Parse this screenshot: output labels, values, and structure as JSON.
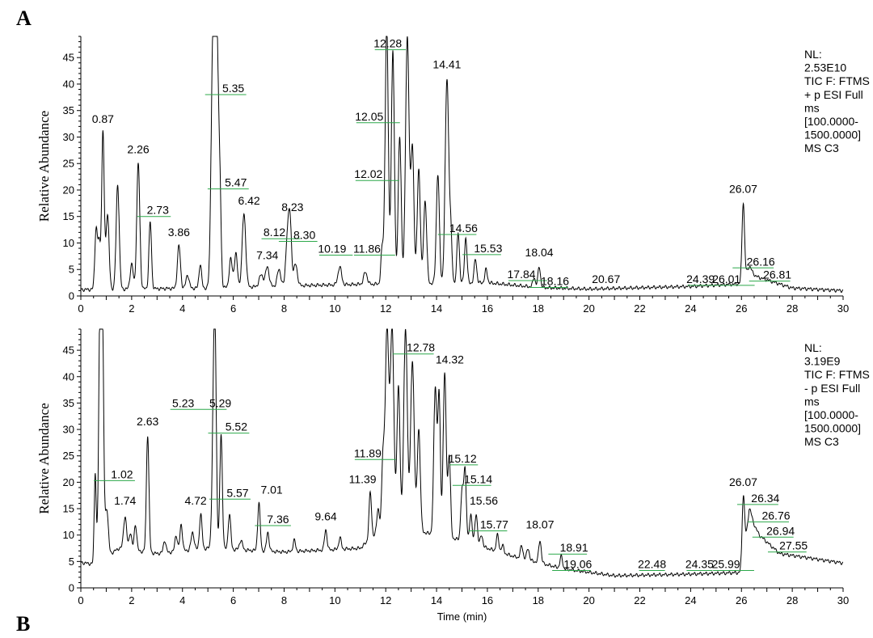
{
  "panel_labels": [
    "A",
    "B"
  ],
  "chart_data": [
    {
      "type": "line",
      "panel": "A",
      "ylabel": "Relative Abundance",
      "xlabel": "",
      "xlim": [
        0,
        30
      ],
      "ylim": [
        0,
        49
      ],
      "xticks": [
        0,
        2,
        4,
        6,
        8,
        10,
        12,
        14,
        16,
        18,
        20,
        22,
        24,
        26,
        28,
        30
      ],
      "yticks": [
        0,
        5,
        10,
        15,
        20,
        25,
        30,
        35,
        40,
        45
      ],
      "info": [
        "NL:",
        "2.53E10",
        "TIC F: FTMS",
        "+ p ESI Full",
        "ms",
        "[100.0000-",
        "1500.0000]",
        "MS C3"
      ],
      "baseline": [
        [
          0,
          1.2
        ],
        [
          5,
          1.5
        ],
        [
          9,
          2.0
        ],
        [
          11,
          2.2
        ],
        [
          16,
          2.5
        ],
        [
          18,
          1.6
        ],
        [
          20,
          1.3
        ],
        [
          24,
          1.8
        ],
        [
          26,
          2.3
        ],
        [
          26.5,
          3.8
        ],
        [
          28,
          1.5
        ],
        [
          30,
          1.0
        ]
      ],
      "peaks": [
        {
          "x": 0.6,
          "y": 12.5,
          "w": 0.05
        },
        {
          "x": 0.72,
          "y": 10,
          "w": 0.05
        },
        {
          "x": 0.87,
          "y": 30.8,
          "w": 0.05
        },
        {
          "x": 1.05,
          "y": 15.5,
          "w": 0.06
        },
        {
          "x": 1.45,
          "y": 21,
          "w": 0.06
        },
        {
          "x": 2.0,
          "y": 6,
          "w": 0.06
        },
        {
          "x": 2.26,
          "y": 25,
          "w": 0.06
        },
        {
          "x": 2.73,
          "y": 14,
          "w": 0.05
        },
        {
          "x": 3.86,
          "y": 9.5,
          "w": 0.06
        },
        {
          "x": 4.2,
          "y": 4,
          "w": 0.06
        },
        {
          "x": 4.7,
          "y": 6,
          "w": 0.05
        },
        {
          "x": 5.2,
          "y": 49,
          "w": 0.07
        },
        {
          "x": 5.35,
          "y": 49,
          "w": 0.06
        },
        {
          "x": 5.47,
          "y": 20,
          "w": 0.05
        },
        {
          "x": 5.9,
          "y": 7,
          "w": 0.06
        },
        {
          "x": 6.1,
          "y": 8,
          "w": 0.06
        },
        {
          "x": 6.42,
          "y": 15.5,
          "w": 0.07
        },
        {
          "x": 7.1,
          "y": 4,
          "w": 0.08
        },
        {
          "x": 7.34,
          "y": 5.5,
          "w": 0.07
        },
        {
          "x": 7.8,
          "y": 5,
          "w": 0.07
        },
        {
          "x": 8.12,
          "y": 10,
          "w": 0.06
        },
        {
          "x": 8.23,
          "y": 14.5,
          "w": 0.06
        },
        {
          "x": 8.45,
          "y": 6,
          "w": 0.07
        },
        {
          "x": 10.19,
          "y": 5.5,
          "w": 0.07
        },
        {
          "x": 11.2,
          "y": 4.5,
          "w": 0.07
        },
        {
          "x": 11.86,
          "y": 9,
          "w": 0.05
        },
        {
          "x": 12.02,
          "y": 22,
          "w": 0.06
        },
        {
          "x": 12.05,
          "y": 33,
          "w": 0.06
        },
        {
          "x": 12.28,
          "y": 46,
          "w": 0.06
        },
        {
          "x": 12.55,
          "y": 30,
          "w": 0.06
        },
        {
          "x": 12.85,
          "y": 49,
          "w": 0.07
        },
        {
          "x": 13.05,
          "y": 28,
          "w": 0.06
        },
        {
          "x": 13.3,
          "y": 24,
          "w": 0.06
        },
        {
          "x": 13.55,
          "y": 18,
          "w": 0.06
        },
        {
          "x": 14.05,
          "y": 23,
          "w": 0.06
        },
        {
          "x": 14.41,
          "y": 41,
          "w": 0.07
        },
        {
          "x": 14.56,
          "y": 11,
          "w": 0.05
        },
        {
          "x": 14.85,
          "y": 12,
          "w": 0.05
        },
        {
          "x": 15.15,
          "y": 11,
          "w": 0.05
        },
        {
          "x": 15.53,
          "y": 7,
          "w": 0.05
        },
        {
          "x": 15.95,
          "y": 5,
          "w": 0.05
        },
        {
          "x": 17.84,
          "y": 3.5,
          "w": 0.05
        },
        {
          "x": 18.04,
          "y": 5.5,
          "w": 0.05
        },
        {
          "x": 26.07,
          "y": 17.5,
          "w": 0.05
        },
        {
          "x": 26.3,
          "y": 5.5,
          "w": 0.1
        }
      ],
      "labels": [
        {
          "text": "0.87",
          "x": 0.87,
          "y": 32.2,
          "dx": 0,
          "lead": false
        },
        {
          "text": "2.26",
          "x": 2.26,
          "y": 26.5,
          "dx": 0,
          "lead": false
        },
        {
          "text": "2.73",
          "x": 2.73,
          "y": 15.0,
          "dx": 0.3,
          "lead": true
        },
        {
          "text": "3.86",
          "x": 3.86,
          "y": 10.8,
          "dx": 0,
          "lead": false
        },
        {
          "text": "5.35",
          "x": 5.4,
          "y": 38.0,
          "dx": 0.6,
          "lead": true
        },
        {
          "text": "5.47",
          "x": 5.5,
          "y": 20.2,
          "dx": 0.6,
          "lead": true
        },
        {
          "text": "6.42",
          "x": 6.42,
          "y": 16.8,
          "dx": 0.2,
          "lead": false
        },
        {
          "text": "7.34",
          "x": 7.34,
          "y": 6.5,
          "dx": 0,
          "lead": false
        },
        {
          "text": "8.12",
          "x": 8.12,
          "y": 10.8,
          "dx": -0.5,
          "lead": true
        },
        {
          "text": "8.23",
          "x": 8.23,
          "y": 15.6,
          "dx": 0.1,
          "lead": false
        },
        {
          "text": "8.30",
          "x": 8.3,
          "y": 10.3,
          "dx": 0.5,
          "lead": true
        },
        {
          "text": "10.19",
          "x": 10.19,
          "y": 7.7,
          "dx": -0.3,
          "lead": true
        },
        {
          "text": "11.86",
          "x": 11.86,
          "y": 7.7,
          "dx": -0.6,
          "lead": true
        },
        {
          "text": "12.02",
          "x": 12.02,
          "y": 21.8,
          "dx": -0.7,
          "lead": true
        },
        {
          "text": "12.05",
          "x": 12.05,
          "y": 32.7,
          "dx": -0.7,
          "lead": true
        },
        {
          "text": "12.28",
          "x": 12.28,
          "y": 46.5,
          "dx": -0.2,
          "lead": true
        },
        {
          "text": "14.41",
          "x": 14.41,
          "y": 42.5,
          "dx": 0,
          "lead": false
        },
        {
          "text": "14.56",
          "x": 14.56,
          "y": 11.6,
          "dx": 0.5,
          "lead": true
        },
        {
          "text": "15.53",
          "x": 15.53,
          "y": 7.8,
          "dx": 0.5,
          "lead": true
        },
        {
          "text": "17.84",
          "x": 17.84,
          "y": 2.9,
          "dx": -0.5,
          "lead": true
        },
        {
          "text": "18.04",
          "x": 18.04,
          "y": 7.0,
          "dx": 0,
          "lead": false
        },
        {
          "text": "18.16",
          "x": 18.16,
          "y": 1.6,
          "dx": 0.5,
          "lead": true
        },
        {
          "text": "20.67",
          "x": 20.67,
          "y": 2.0,
          "dx": 0,
          "lead": false
        },
        {
          "text": "24.39",
          "x": 24.39,
          "y": 2.0,
          "dx": 0,
          "lead": true
        },
        {
          "text": "26.01",
          "x": 26.01,
          "y": 2.0,
          "dx": -0.6,
          "lead": true
        },
        {
          "text": "26.07",
          "x": 26.07,
          "y": 19.0,
          "dx": 0,
          "lead": false
        },
        {
          "text": "26.16",
          "x": 26.16,
          "y": 5.3,
          "dx": 0.6,
          "lead": true
        },
        {
          "text": "26.81",
          "x": 26.81,
          "y": 2.8,
          "dx": 0.6,
          "lead": true
        }
      ]
    },
    {
      "type": "line",
      "panel": "B",
      "ylabel": "Relative Abundance",
      "xlabel": "Time (min)",
      "xlim": [
        0,
        30
      ],
      "ylim": [
        0,
        49
      ],
      "xticks": [
        0,
        2,
        4,
        6,
        8,
        10,
        12,
        14,
        16,
        18,
        20,
        22,
        24,
        26,
        28,
        30
      ],
      "yticks": [
        0,
        5,
        10,
        15,
        20,
        25,
        30,
        35,
        40,
        45
      ],
      "info": [
        "NL:",
        "3.19E9",
        "TIC F: FTMS",
        "- p ESI Full",
        "ms",
        "[100.0000-",
        "1500.0000]",
        "MS C3"
      ],
      "baseline": [
        [
          0,
          4.8
        ],
        [
          0.5,
          4.5
        ],
        [
          0.6,
          1.0
        ],
        [
          0.65,
          4.8
        ],
        [
          1.5,
          7.5
        ],
        [
          3,
          6.5
        ],
        [
          5,
          7.5
        ],
        [
          8,
          6.8
        ],
        [
          11,
          7.5
        ],
        [
          12,
          12
        ],
        [
          15,
          9
        ],
        [
          17,
          6
        ],
        [
          19,
          3.6
        ],
        [
          21,
          2.3
        ],
        [
          24,
          2.6
        ],
        [
          26,
          2.9
        ],
        [
          26.3,
          14
        ],
        [
          26.7,
          10
        ],
        [
          27.5,
          6.5
        ],
        [
          30,
          4.7
        ]
      ],
      "peaks": [
        {
          "x": 0.57,
          "y": 22,
          "w": 0.04
        },
        {
          "x": 0.75,
          "y": 49,
          "w": 0.05
        },
        {
          "x": 0.85,
          "y": 49,
          "w": 0.05
        },
        {
          "x": 1.02,
          "y": 15,
          "w": 0.06
        },
        {
          "x": 1.74,
          "y": 13.5,
          "w": 0.06
        },
        {
          "x": 1.95,
          "y": 10.5,
          "w": 0.05
        },
        {
          "x": 2.15,
          "y": 12,
          "w": 0.05
        },
        {
          "x": 2.63,
          "y": 29,
          "w": 0.05
        },
        {
          "x": 3.3,
          "y": 9,
          "w": 0.05
        },
        {
          "x": 3.75,
          "y": 10,
          "w": 0.05
        },
        {
          "x": 3.95,
          "y": 12,
          "w": 0.05
        },
        {
          "x": 4.4,
          "y": 10.5,
          "w": 0.06
        },
        {
          "x": 4.72,
          "y": 14,
          "w": 0.05
        },
        {
          "x": 5.23,
          "y": 34,
          "w": 0.06
        },
        {
          "x": 5.29,
          "y": 34,
          "w": 0.05
        },
        {
          "x": 5.52,
          "y": 29,
          "w": 0.05
        },
        {
          "x": 5.85,
          "y": 14,
          "w": 0.05
        },
        {
          "x": 6.3,
          "y": 9,
          "w": 0.06
        },
        {
          "x": 7.01,
          "y": 16,
          "w": 0.05
        },
        {
          "x": 7.36,
          "y": 10.5,
          "w": 0.05
        },
        {
          "x": 8.4,
          "y": 9,
          "w": 0.05
        },
        {
          "x": 9.64,
          "y": 11,
          "w": 0.05
        },
        {
          "x": 10.2,
          "y": 9.5,
          "w": 0.05
        },
        {
          "x": 11.39,
          "y": 18,
          "w": 0.05
        },
        {
          "x": 11.7,
          "y": 15,
          "w": 0.05
        },
        {
          "x": 11.89,
          "y": 24,
          "w": 0.05
        },
        {
          "x": 12.05,
          "y": 49,
          "w": 0.07
        },
        {
          "x": 12.25,
          "y": 49,
          "w": 0.07
        },
        {
          "x": 12.5,
          "y": 38,
          "w": 0.06
        },
        {
          "x": 12.78,
          "y": 49,
          "w": 0.07
        },
        {
          "x": 13.05,
          "y": 43,
          "w": 0.07
        },
        {
          "x": 13.3,
          "y": 30,
          "w": 0.06
        },
        {
          "x": 13.95,
          "y": 38,
          "w": 0.06
        },
        {
          "x": 14.1,
          "y": 36,
          "w": 0.05
        },
        {
          "x": 14.32,
          "y": 40.5,
          "w": 0.06
        },
        {
          "x": 14.5,
          "y": 25,
          "w": 0.05
        },
        {
          "x": 15.0,
          "y": 18,
          "w": 0.05
        },
        {
          "x": 15.12,
          "y": 22.5,
          "w": 0.05
        },
        {
          "x": 15.35,
          "y": 14,
          "w": 0.05
        },
        {
          "x": 15.56,
          "y": 14,
          "w": 0.05
        },
        {
          "x": 15.77,
          "y": 10,
          "w": 0.05
        },
        {
          "x": 16.4,
          "y": 10,
          "w": 0.05
        },
        {
          "x": 16.6,
          "y": 8,
          "w": 0.05
        },
        {
          "x": 17.35,
          "y": 8,
          "w": 0.05
        },
        {
          "x": 17.6,
          "y": 7.5,
          "w": 0.05
        },
        {
          "x": 18.07,
          "y": 9,
          "w": 0.05
        },
        {
          "x": 18.91,
          "y": 6,
          "w": 0.05
        },
        {
          "x": 26.07,
          "y": 17.5,
          "w": 0.05
        },
        {
          "x": 26.34,
          "y": 14.8,
          "w": 0.06
        }
      ],
      "labels": [
        {
          "text": "1.02",
          "x": 1.02,
          "y": 20.3,
          "dx": 0.6,
          "lead": true
        },
        {
          "text": "1.74",
          "x": 1.74,
          "y": 15.3,
          "dx": 0,
          "lead": false
        },
        {
          "text": "2.63",
          "x": 2.63,
          "y": 30.3,
          "dx": 0,
          "lead": false
        },
        {
          "text": "4.72",
          "x": 4.72,
          "y": 15.3,
          "dx": -0.2,
          "lead": false
        },
        {
          "text": "5.23",
          "x": 5.23,
          "y": 33.8,
          "dx": -1.2,
          "lead": true
        },
        {
          "text": "5.29",
          "x": 5.29,
          "y": 33.8,
          "dx": 0.2,
          "lead": false
        },
        {
          "text": "5.52",
          "x": 5.52,
          "y": 29.3,
          "dx": 0.6,
          "lead": true
        },
        {
          "text": "5.57",
          "x": 5.57,
          "y": 16.8,
          "dx": 0.6,
          "lead": true
        },
        {
          "text": "7.01",
          "x": 7.01,
          "y": 17.4,
          "dx": 0.5,
          "lead": false
        },
        {
          "text": "7.36",
          "x": 7.36,
          "y": 11.8,
          "dx": 0.4,
          "lead": true
        },
        {
          "text": "9.64",
          "x": 9.64,
          "y": 12.3,
          "dx": 0,
          "lead": false
        },
        {
          "text": "11.39",
          "x": 11.39,
          "y": 19.4,
          "dx": -0.3,
          "lead": false
        },
        {
          "text": "11.89",
          "x": 11.89,
          "y": 24.3,
          "dx": -0.6,
          "lead": true
        },
        {
          "text": "12.78",
          "x": 12.78,
          "y": 44.3,
          "dx": 0.6,
          "lead": true
        },
        {
          "text": "14.32",
          "x": 14.32,
          "y": 42.0,
          "dx": 0.2,
          "lead": false
        },
        {
          "text": "15.12",
          "x": 15.12,
          "y": 23.3,
          "dx": -0.1,
          "lead": true
        },
        {
          "text": "15.14",
          "x": 15.14,
          "y": 19.4,
          "dx": 0.5,
          "lead": true
        },
        {
          "text": "15.56",
          "x": 15.56,
          "y": 15.3,
          "dx": 0.3,
          "lead": false
        },
        {
          "text": "15.77",
          "x": 15.77,
          "y": 10.8,
          "dx": 0.5,
          "lead": true
        },
        {
          "text": "18.07",
          "x": 18.07,
          "y": 10.8,
          "dx": 0,
          "lead": false
        },
        {
          "text": "18.91",
          "x": 18.91,
          "y": 6.4,
          "dx": 0.5,
          "lead": true
        },
        {
          "text": "19.06",
          "x": 19.06,
          "y": 3.3,
          "dx": 0.5,
          "lead": true
        },
        {
          "text": "22.48",
          "x": 22.48,
          "y": 3.3,
          "dx": 0,
          "lead": true
        },
        {
          "text": "24.35",
          "x": 24.35,
          "y": 3.3,
          "dx": 0,
          "lead": true
        },
        {
          "text": "25.99",
          "x": 25.99,
          "y": 3.3,
          "dx": -0.6,
          "lead": true
        },
        {
          "text": "26.07",
          "x": 26.07,
          "y": 18.8,
          "dx": 0,
          "lead": false
        },
        {
          "text": "26.34",
          "x": 26.34,
          "y": 15.8,
          "dx": 0.6,
          "lead": true
        },
        {
          "text": "26.76",
          "x": 26.76,
          "y": 12.5,
          "dx": 0.6,
          "lead": true
        },
        {
          "text": "26.94",
          "x": 26.94,
          "y": 9.6,
          "dx": 0.6,
          "lead": true
        },
        {
          "text": "27.55",
          "x": 27.55,
          "y": 6.8,
          "dx": 0.5,
          "lead": true
        }
      ]
    }
  ]
}
